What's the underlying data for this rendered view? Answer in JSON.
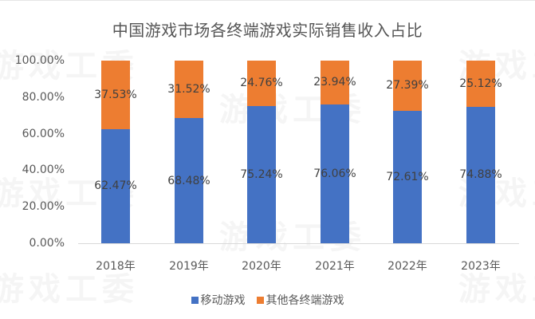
{
  "chart_data": {
    "type": "bar",
    "stacked": true,
    "title": "中国游戏市场各终端游戏实际销售收入占比",
    "categories": [
      "2018年",
      "2019年",
      "2020年",
      "2021年",
      "2022年",
      "2023年"
    ],
    "series": [
      {
        "name": "移动游戏",
        "color": "#4472C4",
        "values": [
          62.47,
          68.48,
          75.24,
          76.06,
          72.61,
          74.88
        ],
        "labels": [
          "62.47%",
          "68.48%",
          "75.24%",
          "76.06%",
          "72.61%",
          "74.88%"
        ]
      },
      {
        "name": "其他各终端游戏",
        "color": "#ED7D31",
        "values": [
          37.53,
          31.52,
          24.76,
          23.94,
          27.39,
          25.12
        ],
        "labels": [
          "37.53%",
          "31.52%",
          "24.76%",
          "23.94%",
          "27.39%",
          "25.12%"
        ]
      }
    ],
    "xlabel": "",
    "ylabel": "",
    "ylim": [
      0,
      100
    ],
    "yticks": [
      "0.00%",
      "20.00%",
      "40.00%",
      "60.00%",
      "80.00%",
      "100.00%"
    ],
    "grid": false,
    "legend_position": "bottom"
  },
  "watermark": "游戏工委"
}
